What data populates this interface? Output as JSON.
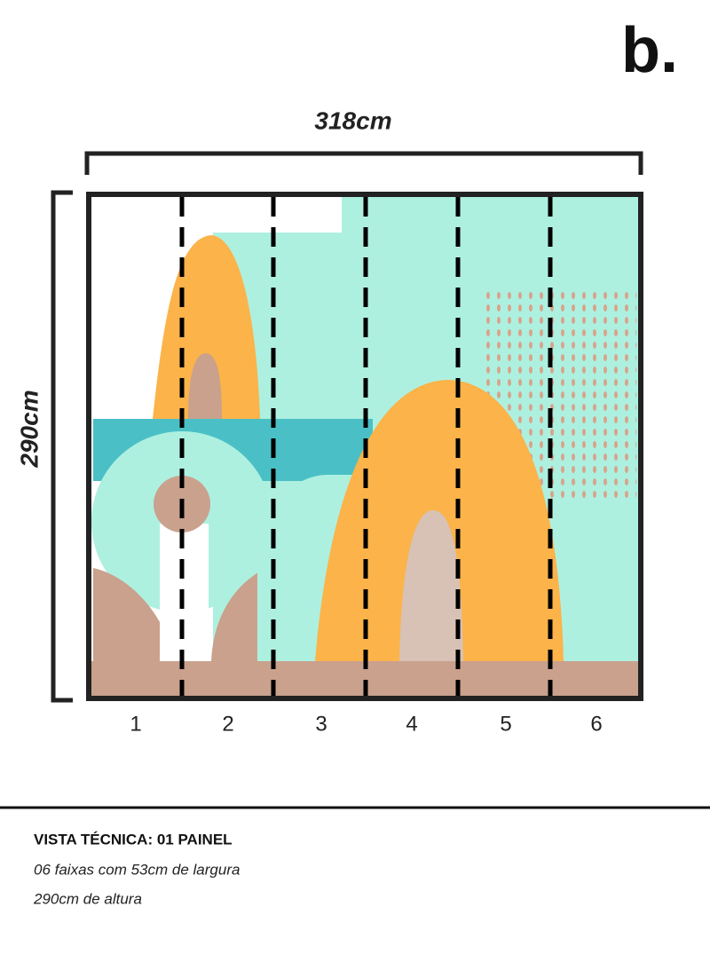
{
  "logo": "b.",
  "dimensions": {
    "width": "318cm",
    "height": "290cm"
  },
  "strips": [
    "1",
    "2",
    "3",
    "4",
    "5",
    "6"
  ],
  "footer": {
    "title": "VISTA TÉCNICA: 01 PAINEL",
    "lines": [
      "06 faixas com 53cm de largura",
      "290cm de altura"
    ]
  }
}
